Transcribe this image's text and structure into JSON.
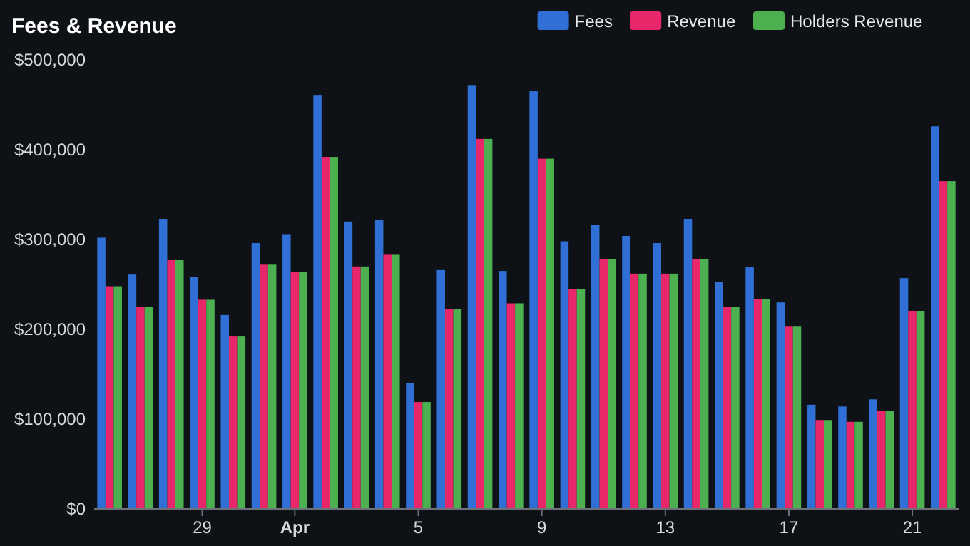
{
  "chart_data": {
    "type": "bar",
    "title": "Fees & Revenue",
    "categories": [
      null,
      null,
      null,
      "29",
      null,
      null,
      "Apr",
      null,
      null,
      null,
      "5",
      null,
      null,
      null,
      "9",
      null,
      null,
      null,
      "13",
      null,
      null,
      null,
      "17",
      null,
      null,
      null,
      "21",
      null
    ],
    "series": [
      {
        "name": "Fees",
        "color": "#2f6fd6",
        "values": [
          302000,
          261000,
          323000,
          258000,
          216000,
          296000,
          306000,
          461000,
          320000,
          322000,
          140000,
          266000,
          472000,
          265000,
          465000,
          298000,
          316000,
          304000,
          296000,
          323000,
          253000,
          269000,
          230000,
          116000,
          114000,
          122000,
          257000,
          426000
        ]
      },
      {
        "name": "Revenue",
        "color": "#e8266a",
        "values": [
          248000,
          225000,
          277000,
          233000,
          192000,
          272000,
          264000,
          392000,
          270000,
          283000,
          119000,
          223000,
          412000,
          229000,
          390000,
          245000,
          278000,
          262000,
          262000,
          278000,
          225000,
          234000,
          203000,
          99000,
          97000,
          109000,
          220000,
          365000
        ]
      },
      {
        "name": "Holders Revenue",
        "color": "#4caf50",
        "values": [
          248000,
          225000,
          277000,
          233000,
          192000,
          272000,
          264000,
          392000,
          270000,
          283000,
          119000,
          223000,
          412000,
          229000,
          390000,
          245000,
          278000,
          262000,
          262000,
          278000,
          225000,
          234000,
          203000,
          99000,
          97000,
          109000,
          220000,
          365000
        ]
      }
    ],
    "ylim": [
      0,
      500000
    ],
    "yticks": [
      {
        "value": 0,
        "label": "$0"
      },
      {
        "value": 100000,
        "label": "$100,000"
      },
      {
        "value": 200000,
        "label": "$200,000"
      },
      {
        "value": 300000,
        "label": "$300,000"
      },
      {
        "value": 400000,
        "label": "$400,000"
      },
      {
        "value": 500000,
        "label": "$500,000"
      }
    ],
    "legend": "top right"
  }
}
